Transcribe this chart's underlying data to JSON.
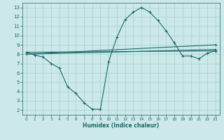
{
  "xlabel": "Humidex (Indice chaleur)",
  "bg_color": "#cce8e8",
  "grid_color": "#aed4d4",
  "line_color": "#1a6b6b",
  "xlim": [
    -0.5,
    23.5
  ],
  "ylim": [
    1.5,
    13.5
  ],
  "xticks": [
    0,
    1,
    2,
    3,
    4,
    5,
    6,
    7,
    8,
    9,
    10,
    11,
    12,
    13,
    14,
    15,
    16,
    17,
    18,
    19,
    20,
    21,
    22,
    23
  ],
  "yticks": [
    2,
    3,
    4,
    5,
    6,
    7,
    8,
    9,
    10,
    11,
    12,
    13
  ],
  "series": [
    {
      "x": [
        0,
        1,
        2,
        3,
        4,
        5,
        6,
        7,
        8,
        9,
        10,
        11,
        12,
        13,
        14,
        15,
        16,
        17,
        18,
        19,
        20,
        21,
        22,
        23
      ],
      "y": [
        8.2,
        7.9,
        7.7,
        7.0,
        6.5,
        4.5,
        3.8,
        2.8,
        2.1,
        2.1,
        7.2,
        9.8,
        11.7,
        12.5,
        13.0,
        12.5,
        11.6,
        10.5,
        9.2,
        7.8,
        7.8,
        7.5,
        8.1,
        8.35
      ]
    },
    {
      "x": [
        0,
        23
      ],
      "y": [
        8.2,
        8.35
      ]
    },
    {
      "x": [
        0,
        23
      ],
      "y": [
        8.0,
        8.5
      ]
    },
    {
      "x": [
        0,
        23
      ],
      "y": [
        8.0,
        9.0
      ]
    }
  ]
}
